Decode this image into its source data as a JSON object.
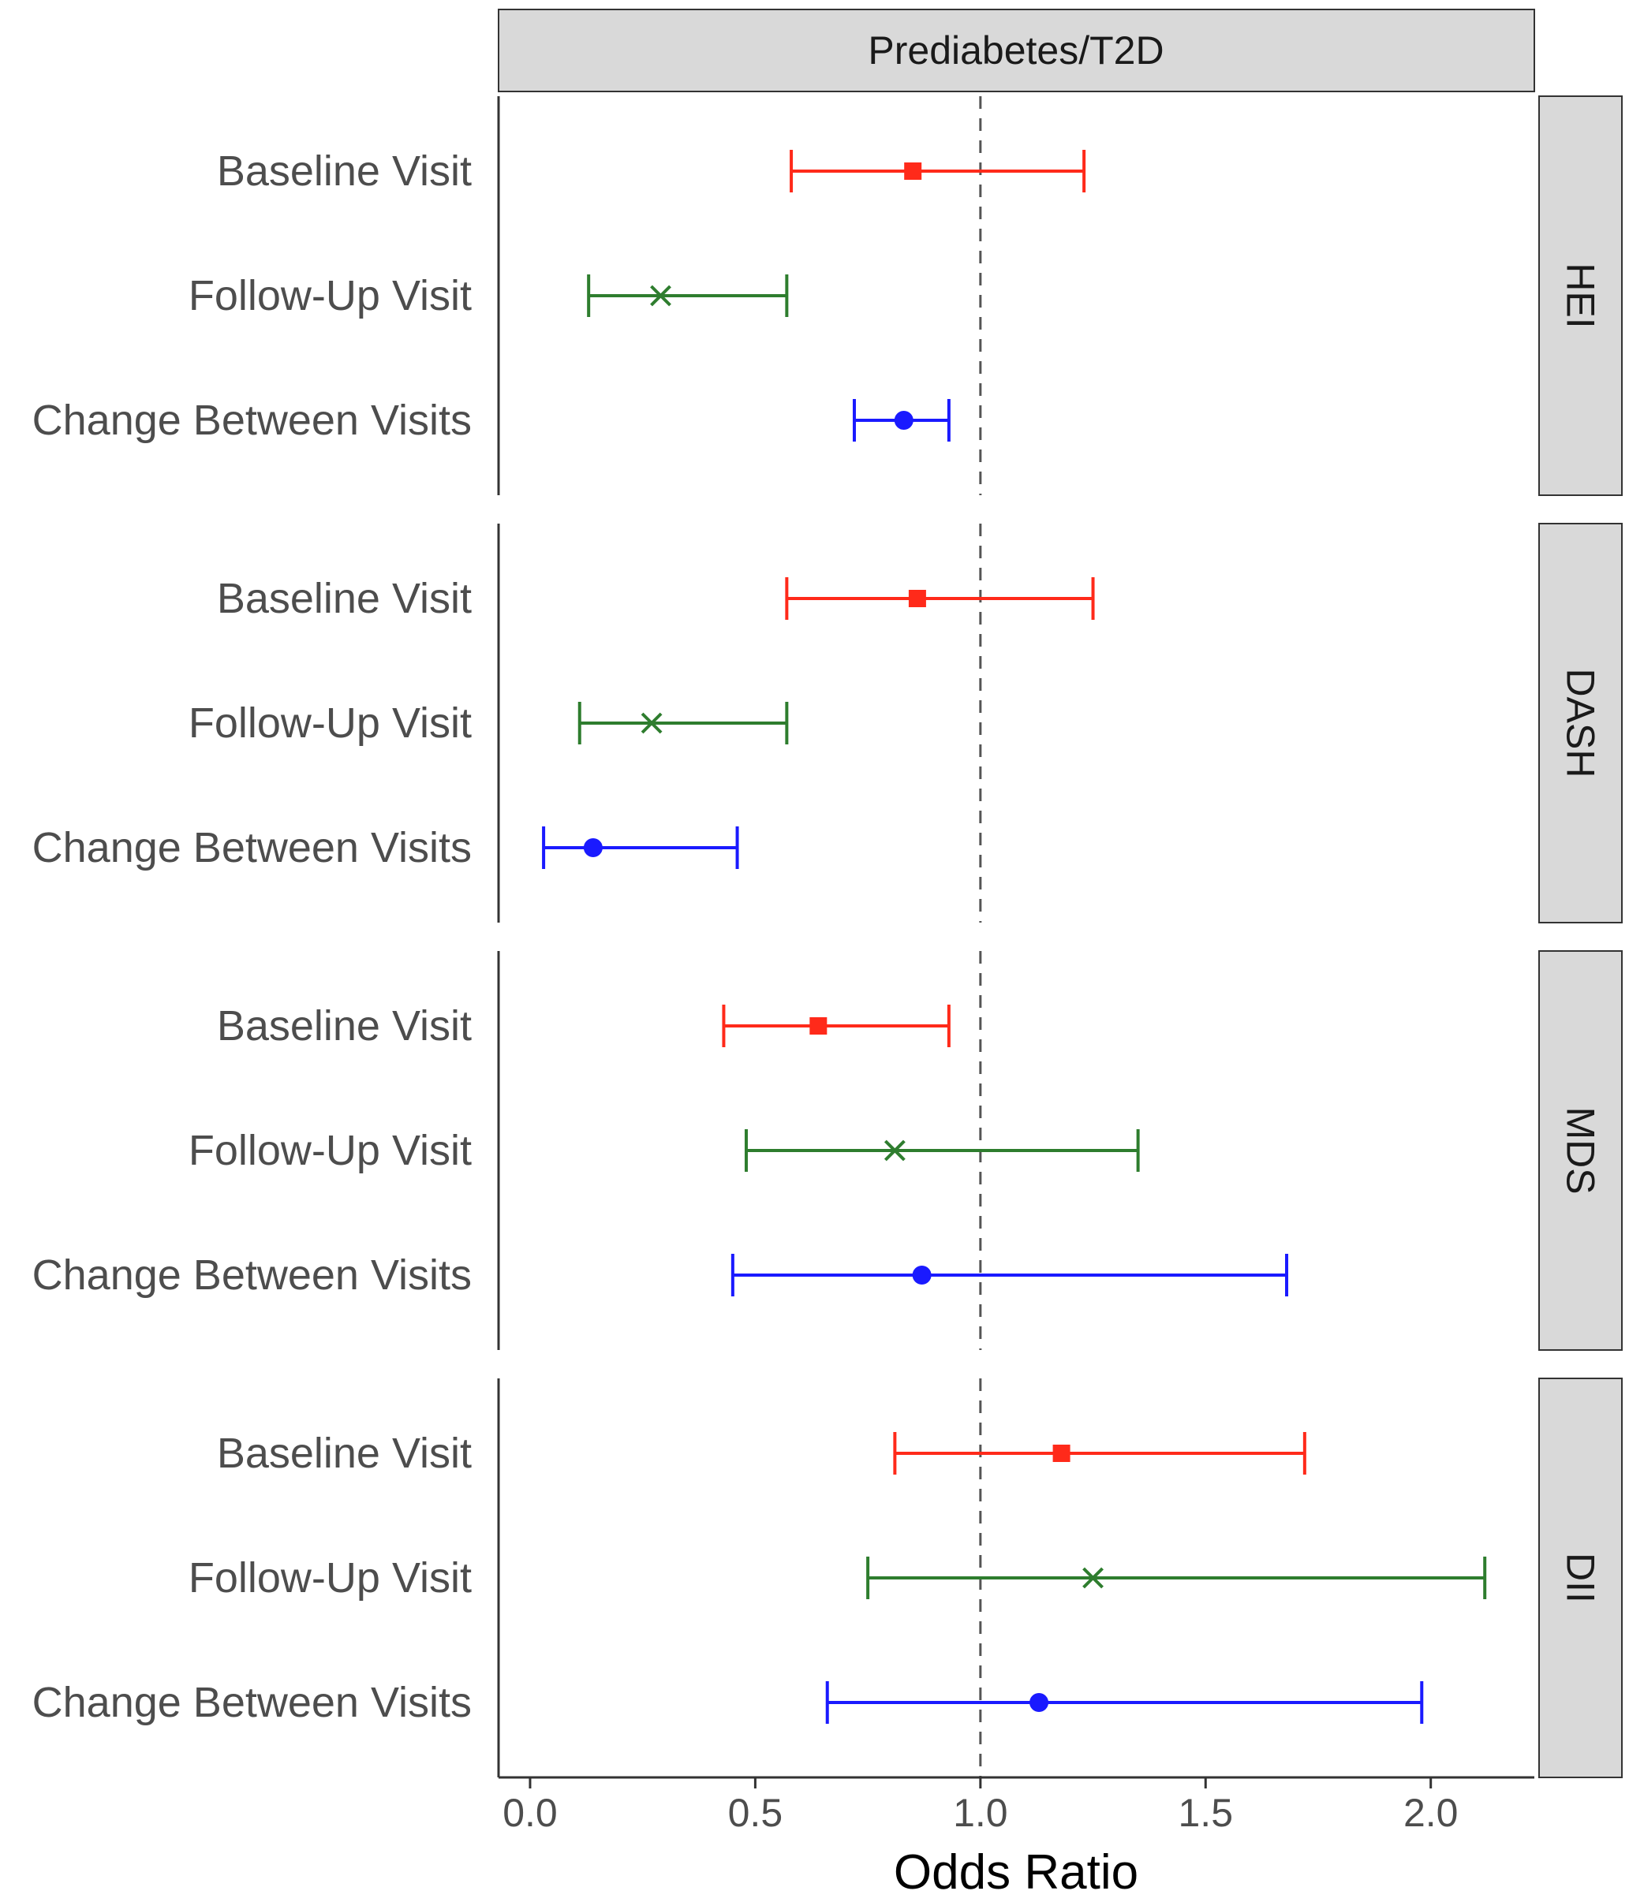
{
  "chart_data": {
    "type": "forest",
    "top_strip": "Prediabetes/T2D",
    "xlabel": "Odds Ratio",
    "xlim": [
      -0.07,
      2.23
    ],
    "x_ticks": [
      0.0,
      0.5,
      1.0,
      1.5,
      2.0
    ],
    "x_tick_labels": [
      "0.0",
      "0.5",
      "1.0",
      "1.5",
      "2.0"
    ],
    "reference_line": 1.0,
    "grid": false,
    "series_styles": [
      {
        "row": "Baseline Visit",
        "color": "#ff2a1a",
        "marker": "square"
      },
      {
        "row": "Follow-Up Visit",
        "color": "#2e7d2e",
        "marker": "x"
      },
      {
        "row": "Change Between Visits",
        "color": "#1a1aff",
        "marker": "circle"
      }
    ],
    "panels": [
      {
        "strip": "HEI",
        "rows": [
          {
            "label": "Baseline Visit",
            "estimate": 0.85,
            "lower": 0.58,
            "upper": 1.23
          },
          {
            "label": "Follow-Up Visit",
            "estimate": 0.29,
            "lower": 0.13,
            "upper": 0.57
          },
          {
            "label": "Change Between Visits",
            "estimate": 0.83,
            "lower": 0.72,
            "upper": 0.93
          }
        ]
      },
      {
        "strip": "DASH",
        "rows": [
          {
            "label": "Baseline Visit",
            "estimate": 0.86,
            "lower": 0.57,
            "upper": 1.25
          },
          {
            "label": "Follow-Up Visit",
            "estimate": 0.27,
            "lower": 0.11,
            "upper": 0.57
          },
          {
            "label": "Change Between Visits",
            "estimate": 0.14,
            "lower": 0.03,
            "upper": 0.46
          }
        ]
      },
      {
        "strip": "MDS",
        "rows": [
          {
            "label": "Baseline Visit",
            "estimate": 0.64,
            "lower": 0.43,
            "upper": 0.93
          },
          {
            "label": "Follow-Up Visit",
            "estimate": 0.81,
            "lower": 0.48,
            "upper": 1.35
          },
          {
            "label": "Change Between Visits",
            "estimate": 0.87,
            "lower": 0.45,
            "upper": 1.68
          }
        ]
      },
      {
        "strip": "DII",
        "rows": [
          {
            "label": "Baseline Visit",
            "estimate": 1.18,
            "lower": 0.81,
            "upper": 1.72
          },
          {
            "label": "Follow-Up Visit",
            "estimate": 1.25,
            "lower": 0.75,
            "upper": 2.12
          },
          {
            "label": "Change Between Visits",
            "estimate": 1.13,
            "lower": 0.66,
            "upper": 1.98
          }
        ]
      }
    ]
  }
}
